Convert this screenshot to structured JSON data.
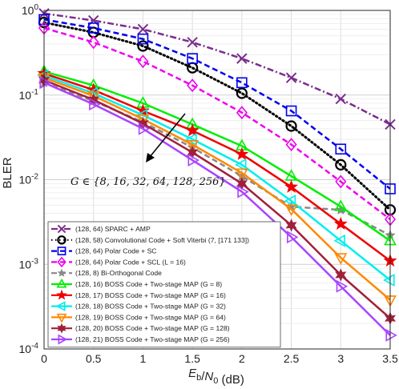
{
  "chart_data": {
    "type": "line",
    "xlabel": "E_b/N_0 (dB)",
    "ylabel": "BLER",
    "xlim": [
      0,
      3.5
    ],
    "ylim": [
      0.0001,
      1
    ],
    "yscale": "log",
    "grid": true,
    "legend_position": "bottom-left",
    "x_ticks": [
      "0",
      "0.5",
      "1",
      "1.5",
      "2",
      "2.5",
      "3",
      "3.5"
    ],
    "y_ticks": [
      "10^0",
      "10^-1",
      "10^-2",
      "10^-3",
      "10^-4"
    ],
    "annotation": "G ∈ {8, 16, 32, 64, 128, 256}",
    "series": [
      {
        "name": "(128, 64) SPARC + AMP",
        "color": "#7b2d8e",
        "dash": "dashdot",
        "marker": "x",
        "x": [
          0,
          0.5,
          1,
          1.5,
          2,
          2.5,
          3,
          3.5
        ],
        "y": [
          0.92,
          0.76,
          0.6,
          0.42,
          0.27,
          0.16,
          0.09,
          0.045
        ]
      },
      {
        "name": "(128, 58) Convolutional Code + Soft Viterbi (7, [171 133])",
        "color": "#000000",
        "dash": "dotted",
        "marker": "circle",
        "x": [
          0,
          0.5,
          1,
          1.5,
          2,
          2.5,
          3,
          3.5
        ],
        "y": [
          0.72,
          0.55,
          0.38,
          0.21,
          0.105,
          0.043,
          0.015,
          0.0044
        ]
      },
      {
        "name": "(128, 64) Polar Code + SC",
        "color": "#0000ee",
        "dash": "dashed",
        "marker": "square",
        "x": [
          0,
          0.5,
          1,
          1.5,
          2,
          2.5,
          3,
          3.5
        ],
        "y": [
          0.78,
          0.62,
          0.46,
          0.27,
          0.14,
          0.065,
          0.023,
          0.0078
        ]
      },
      {
        "name": "(128, 64) Polar Code + SCL (L = 16)",
        "color": "#ee00ee",
        "dash": "dashed",
        "marker": "diamond",
        "x": [
          0,
          0.5,
          1,
          1.5,
          2,
          2.5,
          3,
          3.5
        ],
        "y": [
          0.62,
          0.42,
          0.25,
          0.13,
          0.062,
          0.026,
          0.0095,
          0.0034
        ]
      },
      {
        "name": "(128, 8) Bi-Orthogonal Code",
        "color": "#888888",
        "dash": "dashed",
        "marker": "star",
        "x": [
          0,
          0.5,
          1,
          1.5,
          2,
          2.5,
          3,
          3.5
        ],
        "y": [
          0.14,
          0.085,
          0.048,
          0.024,
          0.011,
          0.0048,
          0.0044,
          0.0022
        ]
      },
      {
        "name": "(128, 16) BOSS Code + Two-stage MAP (G = 8)",
        "color": "#00ee00",
        "dash": "solid",
        "marker": "triangle-up",
        "x": [
          0,
          0.5,
          1,
          1.5,
          2,
          2.5,
          3,
          3.5
        ],
        "y": [
          0.19,
          0.13,
          0.08,
          0.045,
          0.025,
          0.011,
          0.0048,
          0.0019
        ]
      },
      {
        "name": "(128, 17) BOSS Code + Two-stage MAP (G = 16)",
        "color": "#ee0000",
        "dash": "solid",
        "marker": "pentagram",
        "x": [
          0,
          0.5,
          1,
          1.5,
          2,
          2.5,
          3,
          3.5
        ],
        "y": [
          0.18,
          0.115,
          0.065,
          0.038,
          0.02,
          0.0082,
          0.003,
          0.0011
        ]
      },
      {
        "name": "(128, 18) BOSS Code + Two-stage MAP (G = 32)",
        "color": "#00eeee",
        "dash": "solid",
        "marker": "triangle-left",
        "x": [
          0,
          0.5,
          1,
          1.5,
          2,
          2.5,
          3,
          3.5
        ],
        "y": [
          0.17,
          0.105,
          0.058,
          0.03,
          0.015,
          0.0056,
          0.0019,
          0.00065
        ]
      },
      {
        "name": "(128, 19) BOSS Code + Two-stage MAP (G = 64)",
        "color": "#ff8800",
        "dash": "solid",
        "marker": "triangle-down",
        "x": [
          0,
          0.5,
          1,
          1.5,
          2,
          2.5,
          3,
          3.5
        ],
        "y": [
          0.16,
          0.098,
          0.052,
          0.026,
          0.012,
          0.0045,
          0.0012,
          0.00038
        ]
      },
      {
        "name": "(128, 20) BOSS Code + Two-stage MAP (G = 128)",
        "color": "#a0203a",
        "dash": "solid",
        "marker": "hexagram",
        "x": [
          0,
          0.5,
          1,
          1.5,
          2,
          2.5,
          3,
          3.5
        ],
        "y": [
          0.15,
          0.088,
          0.046,
          0.021,
          0.009,
          0.0029,
          0.00075,
          0.00023
        ]
      },
      {
        "name": "(128, 21) BOSS Code + Two-stage MAP (G = 256)",
        "color": "#aa44ff",
        "dash": "solid",
        "marker": "triangle-right",
        "x": [
          0,
          0.5,
          1,
          1.5,
          2,
          2.5,
          3,
          3.5
        ],
        "y": [
          0.14,
          0.078,
          0.04,
          0.017,
          0.0072,
          0.0021,
          0.00055,
          0.000145
        ]
      }
    ]
  }
}
